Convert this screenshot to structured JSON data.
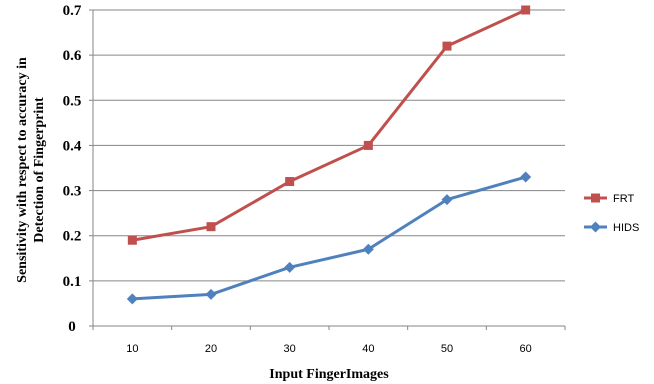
{
  "chart_data": {
    "type": "line",
    "categories": [
      "10",
      "20",
      "30",
      "40",
      "50",
      "60"
    ],
    "y_ticks": [
      "0",
      "0.1",
      "0.2",
      "0.3",
      "0.4",
      "0.5",
      "0.6",
      "0.7"
    ],
    "ylim": [
      0,
      0.7
    ],
    "xlabel": "Input FingerImages",
    "ylabel_lines": [
      "Sensitivity with respect to accuracy in",
      "Detection of Fingerprint"
    ],
    "grid": true,
    "legend_position": "right",
    "series": [
      {
        "name": "FRT",
        "color": "#c0504d",
        "marker": "square",
        "values": [
          0.19,
          0.22,
          0.32,
          0.4,
          0.62,
          0.7
        ]
      },
      {
        "name": "HIDS",
        "color": "#4f81bd",
        "marker": "diamond",
        "values": [
          0.06,
          0.07,
          0.13,
          0.17,
          0.28,
          0.33
        ]
      }
    ]
  }
}
